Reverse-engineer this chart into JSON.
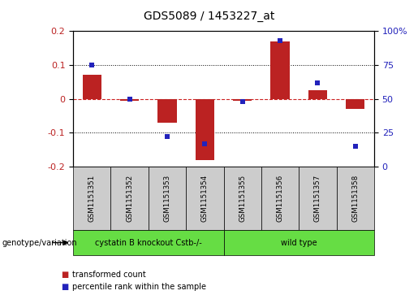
{
  "title": "GDS5089 / 1453227_at",
  "samples": [
    "GSM1151351",
    "GSM1151352",
    "GSM1151353",
    "GSM1151354",
    "GSM1151355",
    "GSM1151356",
    "GSM1151357",
    "GSM1151358"
  ],
  "red_values": [
    0.07,
    -0.005,
    -0.07,
    -0.18,
    -0.005,
    0.17,
    0.025,
    -0.03
  ],
  "blue_values": [
    75,
    50,
    22,
    17,
    48,
    93,
    62,
    15
  ],
  "ylim_left": [
    -0.2,
    0.2
  ],
  "ylim_right": [
    0,
    100
  ],
  "yticks_left": [
    -0.2,
    -0.1,
    0.0,
    0.1,
    0.2
  ],
  "yticks_right": [
    0,
    25,
    50,
    75,
    100
  ],
  "ytick_labels_right": [
    "0",
    "25",
    "50",
    "75",
    "100%"
  ],
  "red_color": "#bb2222",
  "blue_color": "#2222bb",
  "dotted_line_color": "#000000",
  "zero_line_color": "#cc2222",
  "group1_label": "cystatin B knockout Cstb-/-",
  "group2_label": "wild type",
  "group1_count": 4,
  "group2_count": 4,
  "group_color": "#66dd44",
  "sample_box_color": "#cccccc",
  "row_label": "genotype/variation",
  "legend_red": "transformed count",
  "legend_blue": "percentile rank within the sample",
  "bar_width": 0.5
}
